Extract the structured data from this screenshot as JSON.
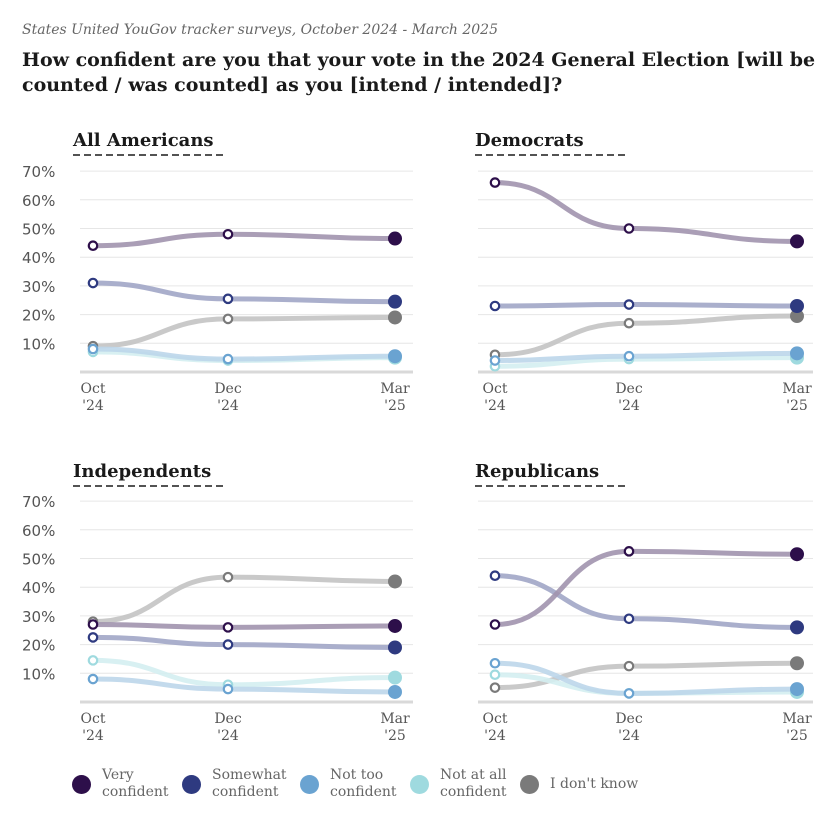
{
  "subtitle": "States United YouGov tracker surveys, October 2024 - March 2025",
  "title": "How confident are you that your vote in the 2024 General Election [will be counted / was counted] as you [intend / intended]?",
  "colors": {
    "very_confident": "#2d0f4a",
    "somewhat_confident": "#2e3a80",
    "not_too_confident": "#6aa3d1",
    "not_at_all_confident": "#9fdadf",
    "dont_know": "#7a7a7a"
  },
  "legend": [
    {
      "key": "very_confident",
      "label_line1": "Very",
      "label_line2": "confident"
    },
    {
      "key": "somewhat_confident",
      "label_line1": "Somewhat",
      "label_line2": "confident"
    },
    {
      "key": "not_too_confident",
      "label_line1": "Not too",
      "label_line2": "confident"
    },
    {
      "key": "not_at_all_confident",
      "label_line1": "Not at all",
      "label_line2": "confident"
    },
    {
      "key": "dont_know",
      "label_line1": "I don't know",
      "label_line2": ""
    }
  ],
  "chart_data": [
    {
      "type": "line",
      "title": "All Americans",
      "x_labels": [
        [
          "Oct",
          "'24"
        ],
        [
          "Dec",
          "'24"
        ],
        [
          "Mar",
          "'25"
        ]
      ],
      "y_ticks": [
        "10%",
        "20%",
        "30%",
        "40%",
        "50%",
        "60%",
        "70%"
      ],
      "ylim": [
        0,
        70
      ],
      "series": [
        {
          "key": "dont_know",
          "name": "I don't know",
          "values": [
            9,
            18.5,
            19
          ]
        },
        {
          "key": "not_at_all_confident",
          "name": "Not at all confident",
          "values": [
            7,
            4,
            5
          ]
        },
        {
          "key": "not_too_confident",
          "name": "Not too confident",
          "values": [
            8,
            4.5,
            5.5
          ]
        },
        {
          "key": "somewhat_confident",
          "name": "Somewhat confident",
          "values": [
            31,
            25.5,
            24.5
          ]
        },
        {
          "key": "very_confident",
          "name": "Very confident",
          "values": [
            44,
            48,
            46.5
          ]
        }
      ]
    },
    {
      "type": "line",
      "title": "Democrats",
      "x_labels": [
        [
          "Oct",
          "'24"
        ],
        [
          "Dec",
          "'24"
        ],
        [
          "Mar",
          "'25"
        ]
      ],
      "y_ticks": [
        "10%",
        "20%",
        "30%",
        "40%",
        "50%",
        "60%",
        "70%"
      ],
      "ylim": [
        0,
        70
      ],
      "series": [
        {
          "key": "dont_know",
          "name": "I don't know",
          "values": [
            6,
            17,
            19.5
          ]
        },
        {
          "key": "not_at_all_confident",
          "name": "Not at all confident",
          "values": [
            2,
            4.5,
            5
          ]
        },
        {
          "key": "not_too_confident",
          "name": "Not too confident",
          "values": [
            4,
            5.5,
            6.5
          ]
        },
        {
          "key": "somewhat_confident",
          "name": "Somewhat confident",
          "values": [
            23,
            23.5,
            23
          ]
        },
        {
          "key": "very_confident",
          "name": "Very confident",
          "values": [
            66,
            50,
            45.5
          ]
        }
      ]
    },
    {
      "type": "line",
      "title": "Independents",
      "x_labels": [
        [
          "Oct",
          "'24"
        ],
        [
          "Dec",
          "'24"
        ],
        [
          "Mar",
          "'25"
        ]
      ],
      "y_ticks": [
        "10%",
        "20%",
        "30%",
        "40%",
        "50%",
        "60%",
        "70%"
      ],
      "ylim": [
        0,
        70
      ],
      "series": [
        {
          "key": "dont_know",
          "name": "I don't know",
          "values": [
            28,
            43.5,
            42
          ]
        },
        {
          "key": "not_at_all_confident",
          "name": "Not at all confident",
          "values": [
            14.5,
            6,
            8.5
          ]
        },
        {
          "key": "not_too_confident",
          "name": "Not too confident",
          "values": [
            8,
            4.5,
            3.5
          ]
        },
        {
          "key": "somewhat_confident",
          "name": "Somewhat confident",
          "values": [
            22.5,
            20,
            19
          ]
        },
        {
          "key": "very_confident",
          "name": "Very confident",
          "values": [
            27,
            26,
            26.5
          ]
        }
      ]
    },
    {
      "type": "line",
      "title": "Republicans",
      "x_labels": [
        [
          "Oct",
          "'24"
        ],
        [
          "Dec",
          "'24"
        ],
        [
          "Mar",
          "'25"
        ]
      ],
      "y_ticks": [
        "10%",
        "20%",
        "30%",
        "40%",
        "50%",
        "60%",
        "70%"
      ],
      "ylim": [
        0,
        70
      ],
      "series": [
        {
          "key": "dont_know",
          "name": "I don't know",
          "values": [
            5,
            12.5,
            13.5
          ]
        },
        {
          "key": "not_at_all_confident",
          "name": "Not at all confident",
          "values": [
            9.5,
            3,
            3.5
          ]
        },
        {
          "key": "not_too_confident",
          "name": "Not too confident",
          "values": [
            13.5,
            3,
            4.5
          ]
        },
        {
          "key": "somewhat_confident",
          "name": "Somewhat confident",
          "values": [
            44,
            29,
            26
          ]
        },
        {
          "key": "very_confident",
          "name": "Very confident",
          "values": [
            27,
            52.5,
            51.5
          ]
        }
      ]
    }
  ]
}
